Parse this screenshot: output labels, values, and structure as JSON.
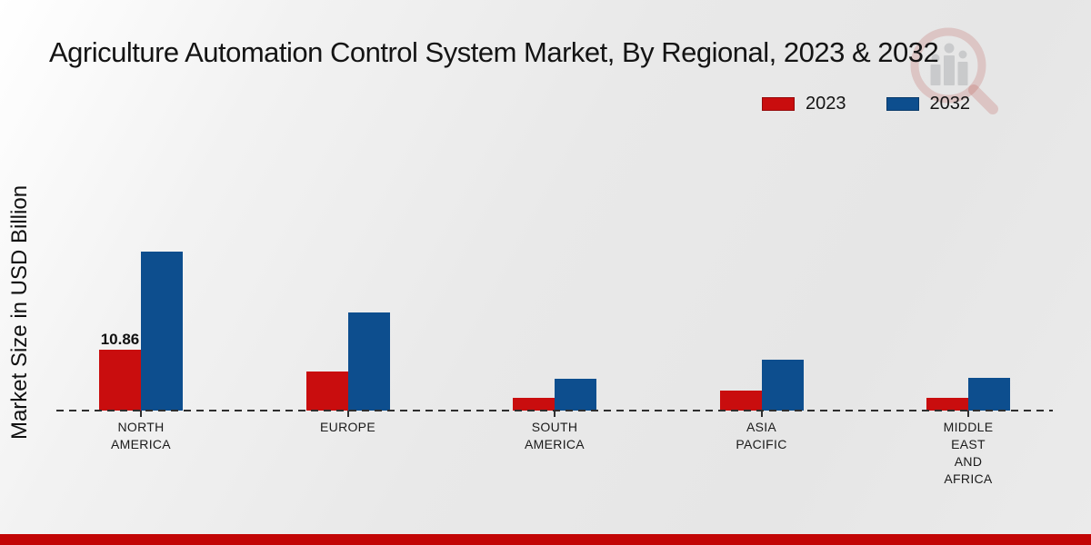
{
  "title": "Agriculture Automation Control System Market, By Regional, 2023 & 2032",
  "y_axis_label": "Market Size in USD Billion",
  "legend": {
    "items": [
      {
        "label": "2023",
        "color": "#c90d0e"
      },
      {
        "label": "2032",
        "color": "#0d4e8e"
      }
    ]
  },
  "colors": {
    "series_2023": "#c90d0e",
    "series_2032": "#0d4e8e",
    "footer_red": "#c20505",
    "axis": "#2e2e2e",
    "text": "#141414"
  },
  "icons": {
    "watermark": "magnifier-bar-chart-logo-icon"
  },
  "chart_data": {
    "type": "bar",
    "title": "Agriculture Automation Control System Market, By Regional, 2023 & 2032",
    "xlabel": "",
    "ylabel": "Market Size in USD Billion",
    "categories": [
      "NORTH AMERICA",
      "EUROPE",
      "SOUTH AMERICA",
      "ASIA PACIFIC",
      "MIDDLE EAST AND AFRICA"
    ],
    "series": [
      {
        "name": "2023",
        "color": "#c90d0e",
        "values": [
          10.86,
          6.9,
          2.3,
          3.5,
          2.3
        ]
      },
      {
        "name": "2032",
        "color": "#0d4e8e",
        "values": [
          28.4,
          17.5,
          5.6,
          9.1,
          5.8
        ]
      }
    ],
    "value_labels": [
      {
        "series_index": 0,
        "category_index": 0,
        "text": "10.86"
      }
    ],
    "units": "USD Billion",
    "ylim": [
      0,
      30
    ],
    "grid": false,
    "y_axis_ticks_visible": false,
    "legend_position": "top-right",
    "baseline_style": "dashed"
  }
}
